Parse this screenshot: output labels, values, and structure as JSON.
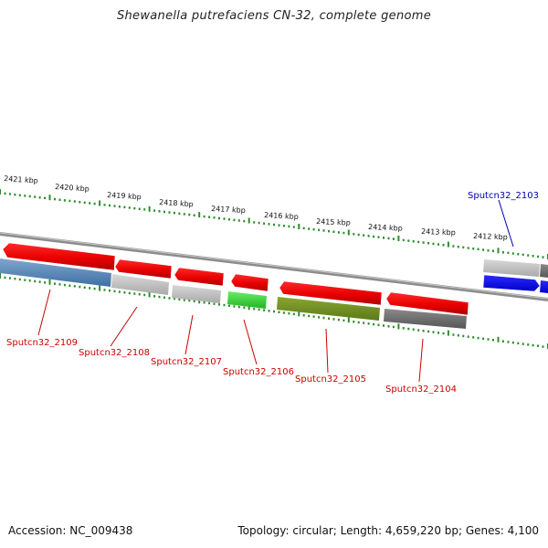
{
  "title": "Shewanella putrefaciens CN-32, complete genome",
  "footer": {
    "accession": "Accession: NC_009438",
    "summary": "Topology: circular; Length: 4,659,220 bp; Genes: 4,100"
  },
  "colors": {
    "ruler_dots": "#2e8b2e",
    "backbone": "#888888",
    "label_forward": "#cc0000",
    "label_reverse": "#0000aa"
  },
  "ticks": [
    "2421 kbp",
    "2420 kbp",
    "2419 kbp",
    "2418 kbp",
    "2417 kbp",
    "2416 kbp",
    "2415 kbp",
    "2414 kbp",
    "2413 kbp",
    "2412 kbp"
  ],
  "gene_labels": [
    {
      "id": "g2109",
      "text": "Sputcn32_2109",
      "strand": "top"
    },
    {
      "id": "g2108",
      "text": "Sputcn32_2108",
      "strand": "top"
    },
    {
      "id": "g2107",
      "text": "Sputcn32_2107",
      "strand": "top"
    },
    {
      "id": "g2106",
      "text": "Sputcn32_2106",
      "strand": "top"
    },
    {
      "id": "g2105",
      "text": "Sputcn32_2105",
      "strand": "top"
    },
    {
      "id": "g2104",
      "text": "Sputcn32_2104",
      "strand": "top"
    },
    {
      "id": "g2103",
      "text": "Sputcn32_2103",
      "strand": "bottom"
    }
  ]
}
